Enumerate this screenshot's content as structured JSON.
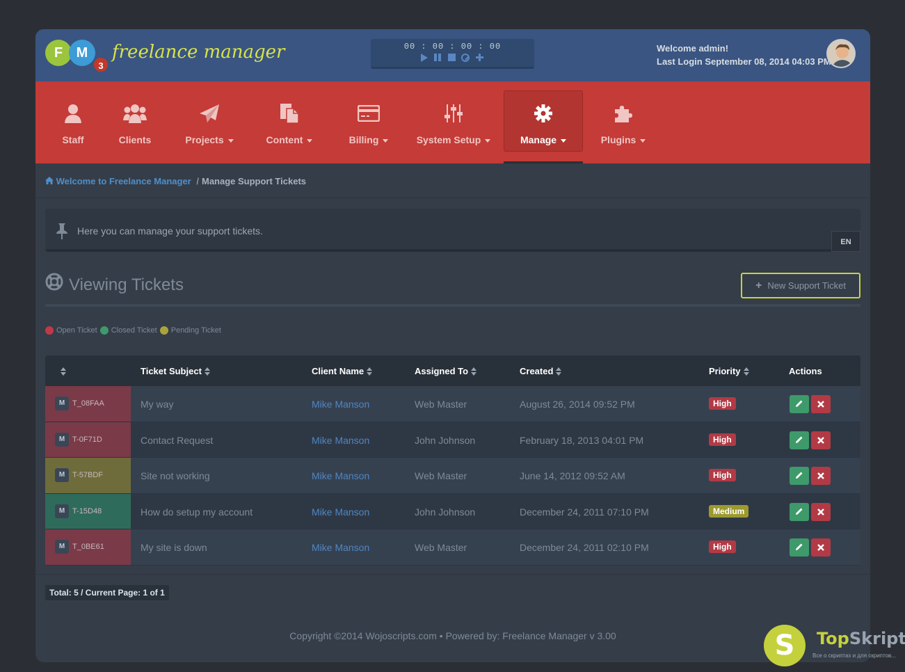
{
  "logo": {
    "letter1": "F",
    "letter2": "M",
    "version_badge": "3",
    "name": "freelance manager"
  },
  "timer": {
    "display": "00 : 00 : 00 : 00"
  },
  "user": {
    "welcome": "Welcome admin!",
    "last_login": "Last Login September 08, 2014 04:03 PM"
  },
  "nav": {
    "staff": "Staff",
    "clients": "Clients",
    "projects": "Projects",
    "content": "Content",
    "billing": "Billing",
    "system_setup": "System Setup",
    "manage": "Manage",
    "plugins": "Plugins"
  },
  "breadcrumb": {
    "home": "Welcome to Freelance Manager",
    "separator": "/",
    "current": "Manage Support Tickets"
  },
  "info": {
    "text": "Here you can manage your support tickets.",
    "lang": "EN"
  },
  "section": {
    "title": "Viewing Tickets",
    "new_button": "New Support Ticket"
  },
  "legend": {
    "open": "Open Ticket",
    "closed": "Closed Ticket",
    "pending": "Pending Ticket",
    "open_color": "#c0394a",
    "closed_color": "#3e9a6a",
    "pending_color": "#a9a43a"
  },
  "table": {
    "headers": {
      "subject": "Ticket Subject",
      "client": "Client Name",
      "assigned": "Assigned To",
      "created": "Created",
      "priority": "Priority",
      "actions": "Actions"
    },
    "rows": [
      {
        "badge": "M",
        "id": "T_08FAA",
        "status": "open",
        "subject": "My way",
        "client": "Mike Manson",
        "assigned": "Web Master",
        "created": "August 26, 2014 09:52 PM",
        "priority": "High"
      },
      {
        "badge": "M",
        "id": "T-0F71D",
        "status": "open",
        "subject": "Contact Request",
        "client": "Mike Manson",
        "assigned": "John Johnson",
        "created": "February 18, 2013 04:01 PM",
        "priority": "High"
      },
      {
        "badge": "M",
        "id": "T-57BDF",
        "status": "pending",
        "subject": "Site not working",
        "client": "Mike Manson",
        "assigned": "Web Master",
        "created": "June 14, 2012 09:52 AM",
        "priority": "High"
      },
      {
        "badge": "M",
        "id": "T-15D48",
        "status": "closed",
        "subject": "How do setup my account",
        "client": "Mike Manson",
        "assigned": "John Johnson",
        "created": "December 24, 2011 07:10 PM",
        "priority": "Medium"
      },
      {
        "badge": "M",
        "id": "T_0BE61",
        "status": "open",
        "subject": "My site is down",
        "client": "Mike Manson",
        "assigned": "Web Master",
        "created": "December 24, 2011 02:10 PM",
        "priority": "High"
      }
    ]
  },
  "pager": {
    "text": "Total: 5 / Current Page: 1 of 1"
  },
  "footer": {
    "copyright": "Copyright ©2014 Wojoscripts.com • Powered by: Freelance Manager v 3.00"
  },
  "watermark": {
    "letter": "S",
    "name_a": "Top",
    "name_b": "Skript",
    "tagline": "Все о скриптах и для скриптов..."
  }
}
